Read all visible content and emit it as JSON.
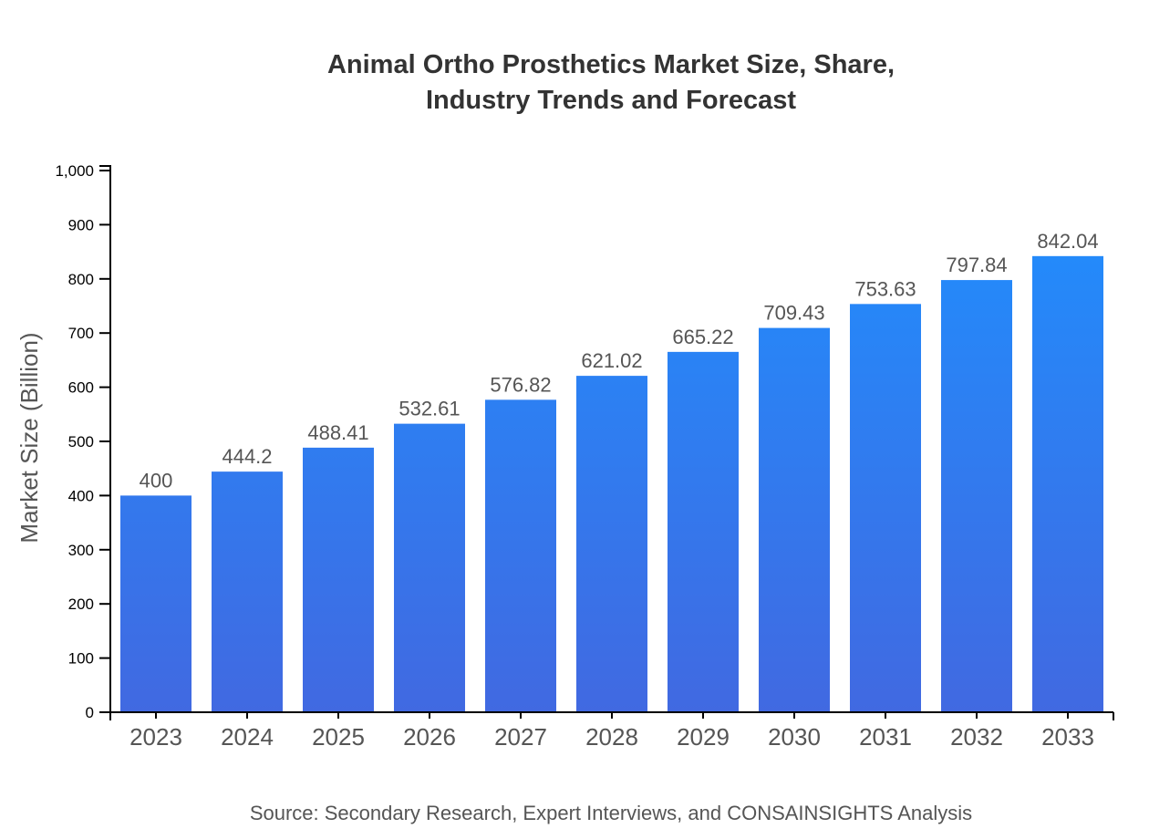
{
  "chart_data": {
    "type": "bar",
    "title_lines": [
      "Animal Ortho Prosthetics Market Size, Share,",
      "Industry Trends and Forecast"
    ],
    "categories": [
      "2023",
      "2024",
      "2025",
      "2026",
      "2027",
      "2028",
      "2029",
      "2030",
      "2031",
      "2032",
      "2033"
    ],
    "values": [
      400,
      444.2,
      488.41,
      532.61,
      576.82,
      621.02,
      665.22,
      709.43,
      753.63,
      797.84,
      842.04
    ],
    "data_labels": [
      "400",
      "444.2",
      "488.41",
      "532.61",
      "576.82",
      "621.02",
      "665.22",
      "709.43",
      "753.63",
      "797.84",
      "842.04"
    ],
    "xlabel": "",
    "ylabel": "Market Size (Billion)",
    "ylim": [
      0,
      1000
    ],
    "yticks": [
      0,
      100,
      200,
      300,
      400,
      500,
      600,
      700,
      800,
      900,
      1000
    ],
    "ytick_labels": [
      "0",
      "100",
      "200",
      "300",
      "400",
      "500",
      "600",
      "700",
      "800",
      "900",
      "1,000"
    ],
    "grid": false,
    "colors": {
      "bar_top": "#1e90ff",
      "bar_bottom": "#4169e1"
    },
    "source": "Source: Secondary Research, Expert Interviews, and CONSAINSIGHTS Analysis"
  }
}
